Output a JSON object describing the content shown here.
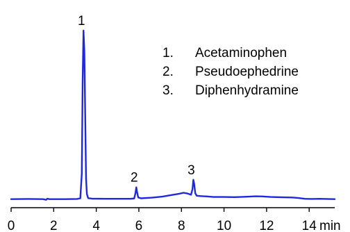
{
  "chart_data": {
    "type": "line",
    "title": "",
    "xlabel": "",
    "ylabel": "",
    "x_unit": "min",
    "xlim": [
      0,
      15.2
    ],
    "ylim": [
      -3,
      100
    ],
    "x_ticks": [
      0,
      2,
      4,
      6,
      8,
      10,
      12,
      14
    ],
    "grid": false,
    "legend_position": "top-right",
    "colors": {
      "trace": "#1f28e0",
      "axis": "#000000"
    },
    "series": [
      {
        "values": [
          [
            0.0,
            0.0
          ],
          [
            0.8,
            0.1
          ],
          [
            1.5,
            0.0
          ],
          [
            1.65,
            -0.4
          ],
          [
            1.7,
            0.3
          ],
          [
            1.8,
            0.0
          ],
          [
            2.6,
            0.0
          ],
          [
            3.1,
            0.1
          ],
          [
            3.25,
            0.5
          ],
          [
            3.32,
            15
          ],
          [
            3.36,
            70
          ],
          [
            3.4,
            100
          ],
          [
            3.44,
            88
          ],
          [
            3.48,
            50
          ],
          [
            3.52,
            12
          ],
          [
            3.56,
            3
          ],
          [
            3.62,
            0.6
          ],
          [
            3.8,
            0.3
          ],
          [
            4.5,
            0.2
          ],
          [
            5.0,
            0.2
          ],
          [
            5.6,
            0.2
          ],
          [
            5.78,
            0.4
          ],
          [
            5.84,
            3.5
          ],
          [
            5.88,
            7.0
          ],
          [
            5.92,
            4.0
          ],
          [
            5.97,
            1.0
          ],
          [
            6.1,
            0.5
          ],
          [
            6.6,
            0.9
          ],
          [
            7.1,
            1.5
          ],
          [
            7.6,
            2.6
          ],
          [
            7.9,
            3.2
          ],
          [
            8.1,
            3.8
          ],
          [
            8.3,
            3.3
          ],
          [
            8.45,
            2.6
          ],
          [
            8.52,
            6.0
          ],
          [
            8.56,
            11.5
          ],
          [
            8.6,
            9.0
          ],
          [
            8.65,
            3.5
          ],
          [
            8.72,
            2.0
          ],
          [
            8.9,
            1.8
          ],
          [
            9.2,
            1.6
          ],
          [
            9.5,
            1.3
          ],
          [
            10.0,
            1.3
          ],
          [
            10.5,
            1.2
          ],
          [
            11.0,
            1.4
          ],
          [
            11.5,
            1.7
          ],
          [
            11.8,
            1.6
          ],
          [
            12.2,
            1.3
          ],
          [
            12.8,
            1.1
          ],
          [
            13.2,
            1.0
          ],
          [
            13.5,
            0.7
          ],
          [
            13.8,
            0.2
          ],
          [
            14.1,
            0.1
          ],
          [
            14.5,
            0.2
          ],
          [
            14.8,
            0.1
          ],
          [
            15.2,
            0.0
          ]
        ]
      }
    ],
    "peak_labels": [
      {
        "label": "1",
        "x": 3.4,
        "y": 100
      },
      {
        "label": "2",
        "x": 5.88,
        "y": 7.0
      },
      {
        "label": "3",
        "x": 8.56,
        "y": 11.5
      }
    ],
    "legend": [
      {
        "number": "1.",
        "name": "Acetaminophen"
      },
      {
        "number": "2.",
        "name": "Pseudoephedrine"
      },
      {
        "number": "3.",
        "name": "Diphenhydramine"
      }
    ]
  }
}
